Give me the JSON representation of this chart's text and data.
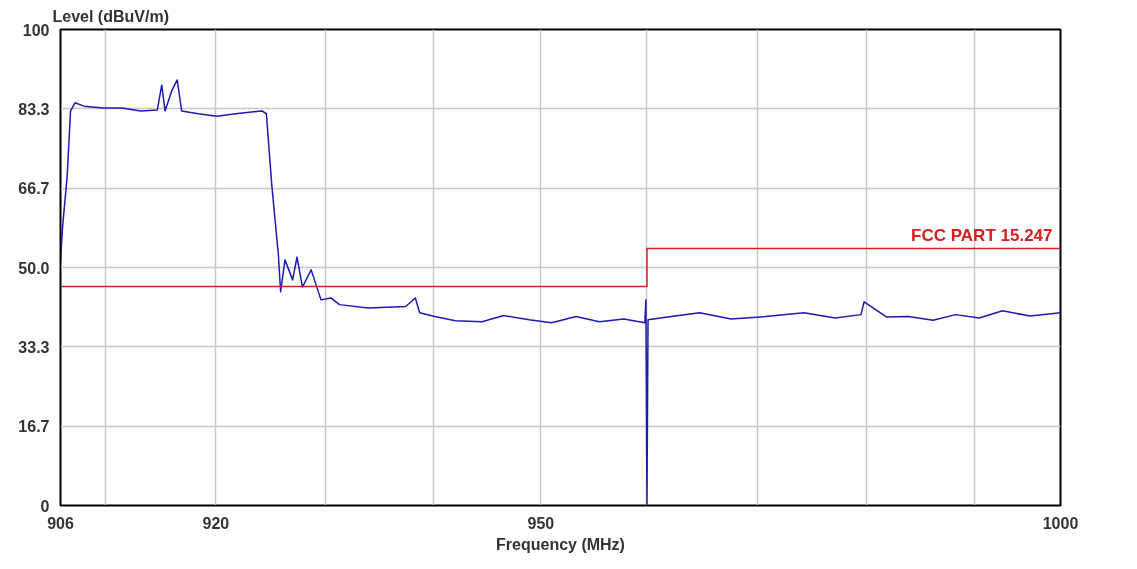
{
  "chart_data": {
    "type": "line",
    "xlabel": "Frequency (MHz)",
    "ylabel": "Level (dBuV/m)",
    "log": "x",
    "xlim": [
      906,
      1000
    ],
    "ylim": [
      0,
      100
    ],
    "xticks": [
      906,
      {
        "value": 910,
        "label": null
      },
      920,
      {
        "value": 930,
        "label": null
      },
      {
        "value": 940,
        "label": null
      },
      950,
      {
        "value": 960,
        "label": null
      },
      {
        "value": 970.5,
        "label": null
      },
      {
        "value": 981,
        "label": null
      },
      {
        "value": 991.5,
        "label": null
      },
      1000
    ],
    "yticks": [
      0,
      16.7,
      33.3,
      {
        "value": 50,
        "label": "50.0"
      },
      66.7,
      83.3,
      100
    ],
    "grid": true,
    "marker": "none",
    "line_style": "solid",
    "series": [
      {
        "color": "#1a1ab4",
        "x": [
          906.0,
          906.2,
          906.6,
          906.9,
          907.3,
          908.1,
          909.8,
          911.5,
          913.2,
          914.7,
          915.1,
          915.4,
          916.0,
          916.5,
          916.9,
          918.4,
          920.1,
          921.8,
          924.2,
          924.6,
          925.1,
          925.7,
          925.9,
          926.3,
          927.0,
          927.4,
          927.9,
          928.7,
          929.6,
          930.5,
          931.3,
          933.9,
          937.4,
          938.3,
          938.7,
          940.1,
          942.0,
          944.5,
          946.5,
          948.9,
          951.0,
          953.3,
          955.5,
          957.8,
          959.8,
          959.9,
          960.0,
          960.1,
          962.3,
          965.0,
          968.0,
          971.3,
          975.0,
          978.0,
          980.5,
          980.8,
          983.0,
          985.1,
          987.5,
          989.7,
          992.0,
          994.3,
          997.0,
          1000.0
        ],
        "values": [
          51.6,
          58.9,
          69.3,
          82.9,
          84.6,
          83.9,
          83.5,
          83.5,
          82.9,
          83.1,
          88.3,
          82.9,
          87.1,
          89.4,
          82.9,
          82.3,
          81.8,
          82.3,
          82.9,
          82.3,
          67.2,
          52.6,
          44.9,
          51.6,
          47.4,
          52.2,
          45.9,
          49.5,
          43.2,
          43.6,
          42.2,
          41.5,
          41.8,
          43.6,
          40.5,
          39.7,
          38.8,
          38.6,
          39.9,
          39.0,
          38.4,
          39.7,
          38.6,
          39.2,
          38.4,
          43.2,
          0,
          39.0,
          39.7,
          40.5,
          39.2,
          39.7,
          40.5,
          39.4,
          40.1,
          42.8,
          39.6,
          39.7,
          38.9,
          40.1,
          39.4,
          40.9,
          39.8,
          40.5
        ]
      },
      {
        "name": "FCC PART 15.247",
        "color": "#d42020",
        "x": [
          906,
          960,
          960,
          1000
        ],
        "values": [
          46,
          46,
          54,
          54
        ]
      }
    ]
  }
}
